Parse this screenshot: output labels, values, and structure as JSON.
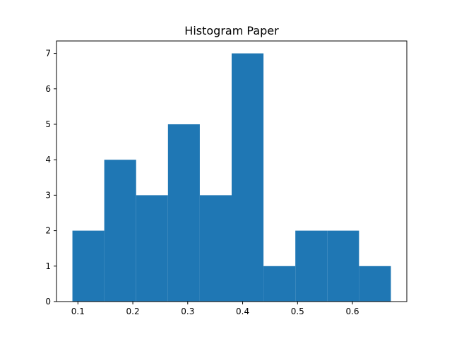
{
  "chart_data": {
    "type": "bar",
    "title": "Histogram Paper",
    "xlabel": "",
    "ylabel": "",
    "bins": [
      {
        "x0": 0.09,
        "x1": 0.148,
        "count": 2
      },
      {
        "x0": 0.148,
        "x1": 0.206,
        "count": 4
      },
      {
        "x0": 0.206,
        "x1": 0.264,
        "count": 3
      },
      {
        "x0": 0.264,
        "x1": 0.322,
        "count": 5
      },
      {
        "x0": 0.322,
        "x1": 0.38,
        "count": 3
      },
      {
        "x0": 0.38,
        "x1": 0.438,
        "count": 7
      },
      {
        "x0": 0.438,
        "x1": 0.496,
        "count": 1
      },
      {
        "x0": 0.496,
        "x1": 0.554,
        "count": 2
      },
      {
        "x0": 0.554,
        "x1": 0.612,
        "count": 2
      },
      {
        "x0": 0.612,
        "x1": 0.67,
        "count": 1
      }
    ],
    "xlim": [
      0.061,
      0.699
    ],
    "ylim": [
      0,
      7.35
    ],
    "xticks": [
      {
        "value": 0.1,
        "label": "0.1"
      },
      {
        "value": 0.2,
        "label": "0.2"
      },
      {
        "value": 0.3,
        "label": "0.3"
      },
      {
        "value": 0.4,
        "label": "0.4"
      },
      {
        "value": 0.5,
        "label": "0.5"
      },
      {
        "value": 0.6,
        "label": "0.6"
      }
    ],
    "yticks": [
      {
        "value": 0,
        "label": "0"
      },
      {
        "value": 1,
        "label": "1"
      },
      {
        "value": 2,
        "label": "2"
      },
      {
        "value": 3,
        "label": "3"
      },
      {
        "value": 4,
        "label": "4"
      },
      {
        "value": 5,
        "label": "5"
      },
      {
        "value": 6,
        "label": "6"
      },
      {
        "value": 7,
        "label": "7"
      }
    ],
    "grid": false,
    "colors": {
      "bar": "#1f77b4",
      "axis": "#000000",
      "background": "#ffffff"
    }
  }
}
